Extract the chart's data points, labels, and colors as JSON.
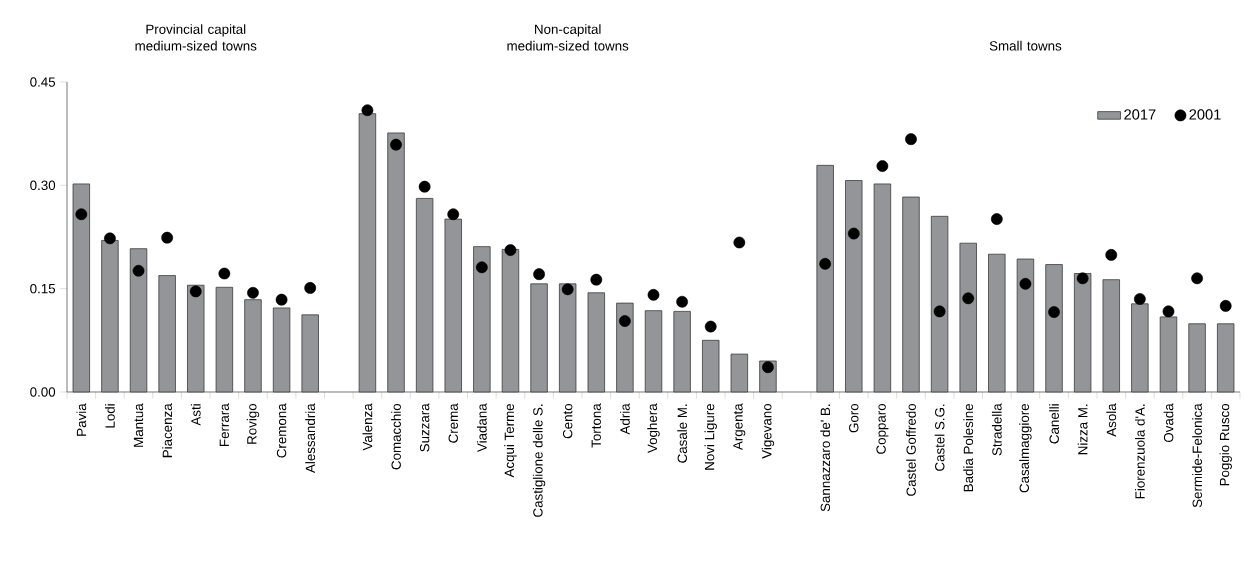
{
  "chart_data": {
    "type": "bar",
    "annotations": [
      "Provincial capital medium-sized towns",
      "Non-capital medium-sized towns",
      "Small towns"
    ],
    "categories": [
      "Pavia",
      "Lodi",
      "Mantua",
      "Piacenza",
      "Asti",
      "Ferrara",
      "Rovigo",
      "Cremona",
      "Alessandria",
      null,
      "Valenza",
      "Comacchio",
      "Suzzara",
      "Crema",
      "Viadana",
      "Acqui Terme",
      "Castiglione delle S.",
      "Cento",
      "Tortona",
      "Adria",
      "Voghera",
      "Casale M.",
      "Novi Ligure",
      "Argenta",
      "Vigevano",
      null,
      "Sannazzaro de' B.",
      "Goro",
      "Copparo",
      "Castel Goffredo",
      "Castel S.G.",
      "Badia Polesine",
      "Stradella",
      "Casalmaggiore",
      "Canelli",
      "Nizza M.",
      "Asola",
      "Fiorenzuola d'A.",
      "Ovada",
      "Sermide-Felonica",
      "Poggio Rusco"
    ],
    "series": [
      {
        "name": "2017",
        "color": "#939598",
        "values": [
          0.302,
          0.22,
          0.208,
          0.169,
          0.155,
          0.152,
          0.134,
          0.122,
          0.112,
          null,
          0.404,
          0.376,
          0.281,
          0.251,
          0.211,
          0.207,
          0.157,
          0.157,
          0.144,
          0.129,
          0.118,
          0.117,
          0.075,
          0.055,
          0.045,
          null,
          0.329,
          0.307,
          0.302,
          0.283,
          0.255,
          0.216,
          0.2,
          0.193,
          0.185,
          0.172,
          0.163,
          0.128,
          0.109,
          0.099,
          0.099
        ]
      },
      {
        "name": "2001",
        "type": "scatter",
        "marker": "circle",
        "color": "#000000",
        "values": [
          0.258,
          0.223,
          0.176,
          0.224,
          0.146,
          0.172,
          0.144,
          0.134,
          0.151,
          null,
          0.409,
          0.359,
          0.298,
          0.258,
          0.181,
          0.206,
          0.171,
          0.149,
          0.163,
          0.103,
          0.141,
          0.131,
          0.095,
          0.217,
          0.036,
          null,
          0.186,
          0.23,
          0.328,
          0.367,
          0.117,
          0.136,
          0.251,
          0.157,
          0.116,
          0.165,
          0.199,
          0.135,
          0.117,
          0.165,
          0.125
        ]
      }
    ],
    "ylim": [
      0,
      0.45
    ],
    "yticks": [
      {
        "value": 0,
        "label": "0.00"
      },
      0.15,
      {
        "value": 0.3,
        "label": "0.30"
      },
      0.45
    ],
    "legend": "top right",
    "grid": false
  }
}
